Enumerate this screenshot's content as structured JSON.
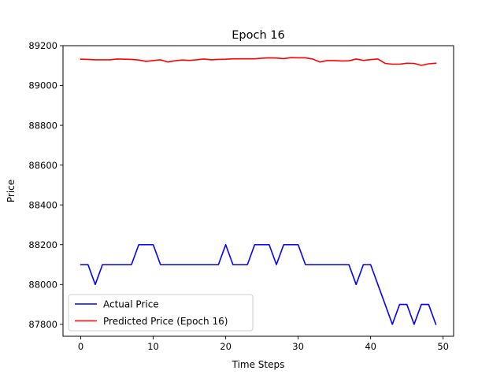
{
  "chart_data": {
    "type": "line",
    "title": "Epoch 16",
    "xlabel": "Time Steps",
    "ylabel": "Price",
    "xlim": [
      -2.45,
      51.45
    ],
    "ylim": [
      87740,
      89200
    ],
    "xticks": [
      0,
      10,
      20,
      30,
      40,
      50
    ],
    "yticks": [
      87800,
      88000,
      88200,
      88400,
      88600,
      88800,
      89000,
      89200
    ],
    "grid": false,
    "legend_position": "lower-left",
    "x": [
      0,
      1,
      2,
      3,
      4,
      5,
      6,
      7,
      8,
      9,
      10,
      11,
      12,
      13,
      14,
      15,
      16,
      17,
      18,
      19,
      20,
      21,
      22,
      23,
      24,
      25,
      26,
      27,
      28,
      29,
      30,
      31,
      32,
      33,
      34,
      35,
      36,
      37,
      38,
      39,
      40,
      41,
      42,
      43,
      44,
      45,
      46,
      47,
      48,
      49
    ],
    "series": [
      {
        "name": "Actual Price",
        "color": "#0000ff",
        "values": [
          88100,
          88100,
          88000,
          88100,
          88100,
          88100,
          88100,
          88100,
          88200,
          88200,
          88200,
          88100,
          88100,
          88100,
          88100,
          88100,
          88100,
          88100,
          88100,
          88100,
          88200,
          88100,
          88100,
          88100,
          88200,
          88200,
          88200,
          88100,
          88200,
          88200,
          88200,
          88100,
          88100,
          88100,
          88100,
          88100,
          88100,
          88100,
          88000,
          88100,
          88100,
          88000,
          87900,
          87800,
          87900,
          87900,
          87800,
          87900,
          87900,
          87800
        ]
      },
      {
        "name": "Predicted Price (Epoch 16)",
        "color": "#ff0000",
        "values": [
          89132,
          89131,
          89129,
          89129,
          89129,
          89133,
          89132,
          89131,
          89128,
          89121,
          89125,
          89129,
          89118,
          89124,
          89128,
          89126,
          89129,
          89133,
          89129,
          89131,
          89132,
          89134,
          89134,
          89134,
          89134,
          89137,
          89139,
          89138,
          89135,
          89140,
          89139,
          89139,
          89133,
          89118,
          89125,
          89125,
          89123,
          89124,
          89133,
          89126,
          89130,
          89133,
          89111,
          89107,
          89107,
          89112,
          89111,
          89101,
          89109,
          89112
        ]
      }
    ]
  }
}
